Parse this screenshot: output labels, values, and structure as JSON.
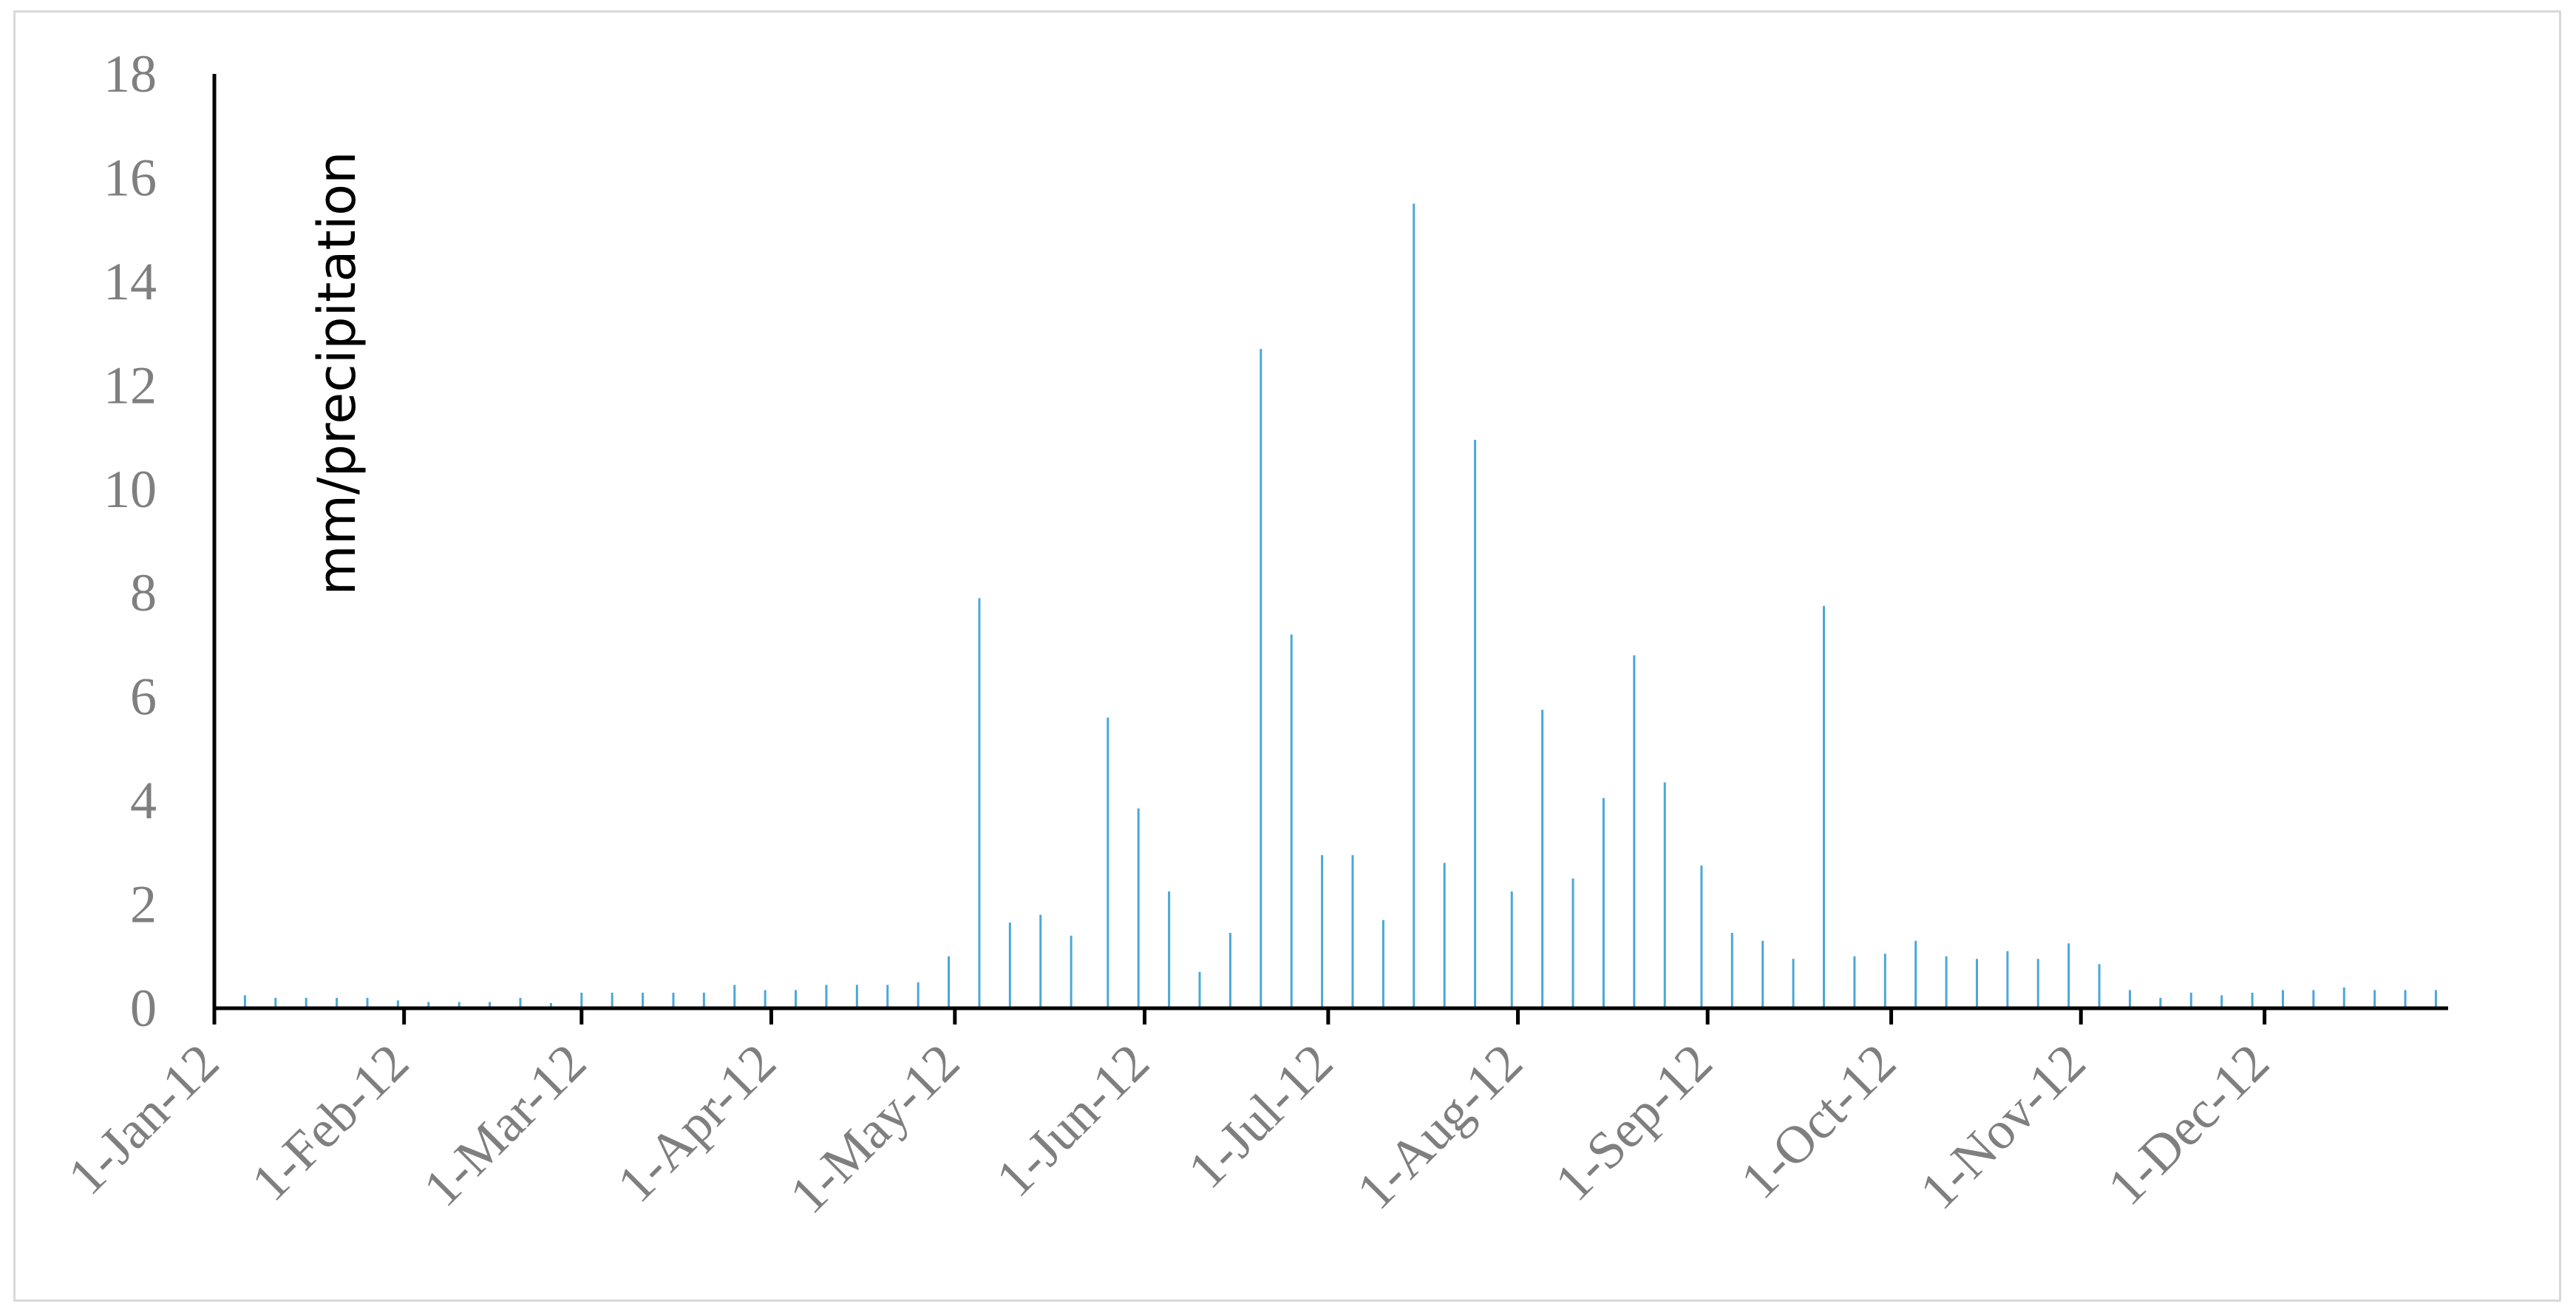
{
  "chart_data": {
    "type": "bar",
    "title": "",
    "xlabel": "",
    "ylabel": "mm/precipitation",
    "ylim": [
      0,
      18
    ],
    "y_ticks": [
      "0",
      "2",
      "4",
      "6",
      "8",
      "10",
      "12",
      "14",
      "16",
      "18"
    ],
    "x_range": [
      "2012-01-01",
      "2012-12-31"
    ],
    "x_ticks": [
      {
        "date": "2012-01-01",
        "label": "1-Jan-12"
      },
      {
        "date": "2012-02-01",
        "label": "1-Feb-12"
      },
      {
        "date": "2012-03-01",
        "label": "1-Mar-12"
      },
      {
        "date": "2012-04-01",
        "label": "1-Apr-12"
      },
      {
        "date": "2012-05-01",
        "label": "1-May-12"
      },
      {
        "date": "2012-06-01",
        "label": "1-Jun-12"
      },
      {
        "date": "2012-07-01",
        "label": "1-Jul-12"
      },
      {
        "date": "2012-08-01",
        "label": "1-Aug-12"
      },
      {
        "date": "2012-09-01",
        "label": "1-Sep-12"
      },
      {
        "date": "2012-10-01",
        "label": "1-Oct-12"
      },
      {
        "date": "2012-11-01",
        "label": "1-Nov-12"
      },
      {
        "date": "2012-12-01",
        "label": "1-Dec-12"
      }
    ],
    "grid": false,
    "legend": "none",
    "bar_color": "#4aa8d8",
    "axis_color": "#000000",
    "series": [
      {
        "x": [
          "2012-01-01",
          "2012-01-06",
          "2012-01-11",
          "2012-01-16",
          "2012-01-21",
          "2012-01-26",
          "2012-01-31",
          "2012-02-05",
          "2012-02-10",
          "2012-02-15",
          "2012-02-20",
          "2012-02-25",
          "2012-03-01",
          "2012-03-06",
          "2012-03-11",
          "2012-03-16",
          "2012-03-21",
          "2012-03-26",
          "2012-03-31",
          "2012-04-05",
          "2012-04-10",
          "2012-04-15",
          "2012-04-20",
          "2012-04-25",
          "2012-04-30",
          "2012-05-05",
          "2012-05-10",
          "2012-05-15",
          "2012-05-20",
          "2012-05-26",
          "2012-05-31",
          "2012-06-05",
          "2012-06-10",
          "2012-06-15",
          "2012-06-20",
          "2012-06-25",
          "2012-06-30",
          "2012-07-05",
          "2012-07-10",
          "2012-07-15",
          "2012-07-20",
          "2012-07-25",
          "2012-07-31",
          "2012-08-05",
          "2012-08-10",
          "2012-08-15",
          "2012-08-20",
          "2012-08-25",
          "2012-08-31",
          "2012-09-05",
          "2012-09-10",
          "2012-09-15",
          "2012-09-20",
          "2012-09-25",
          "2012-09-30",
          "2012-10-05",
          "2012-10-10",
          "2012-10-15",
          "2012-10-20",
          "2012-10-25",
          "2012-10-30",
          "2012-11-04",
          "2012-11-09",
          "2012-11-14",
          "2012-11-19",
          "2012-11-24",
          "2012-11-29",
          "2012-12-04",
          "2012-12-09",
          "2012-12-14",
          "2012-12-19",
          "2012-12-24",
          "2012-12-29"
        ],
        "values": [
          0.3,
          0.25,
          0.2,
          0.2,
          0.2,
          0.2,
          0.15,
          0.12,
          0.12,
          0.12,
          0.2,
          0.1,
          0.3,
          0.3,
          0.3,
          0.3,
          0.3,
          0.45,
          0.35,
          0.35,
          0.45,
          0.45,
          0.45,
          0.5,
          1.0,
          7.9,
          1.65,
          1.8,
          1.4,
          5.6,
          3.85,
          2.25,
          0.7,
          1.45,
          12.7,
          7.2,
          2.95,
          2.95,
          1.7,
          15.5,
          2.8,
          10.95,
          2.25,
          5.75,
          2.5,
          4.05,
          6.8,
          4.35,
          2.75,
          1.45,
          1.3,
          0.95,
          7.75,
          1.0,
          1.05,
          1.3,
          1.0,
          0.95,
          1.1,
          0.95,
          1.25,
          0.85,
          0.35,
          0.2,
          0.3,
          0.25,
          0.3,
          0.35,
          0.35,
          0.4,
          0.35,
          0.35,
          0.35
        ]
      }
    ]
  }
}
